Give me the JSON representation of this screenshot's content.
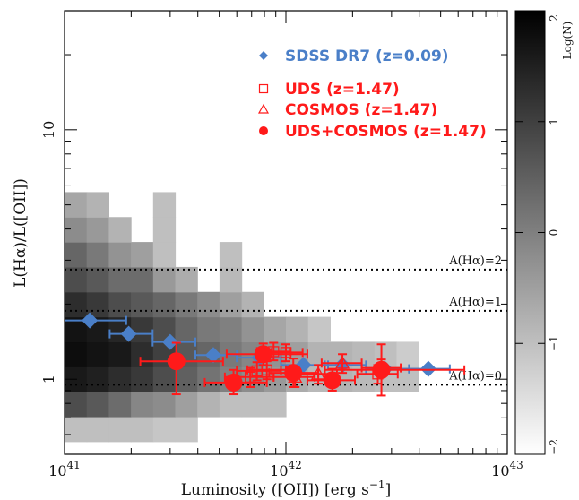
{
  "chart_data": {
    "type": "scatter",
    "xlabel": "Luminosity ([OII]) [erg s",
    "xlabel_sup": "−1",
    "xlabel_end": "]",
    "ylabel": "L(Hα)/L([OII])",
    "x_scale": "log",
    "y_scale": "log",
    "xlim": [
      1e+41,
      1e+43
    ],
    "ylim": [
      0.5,
      30
    ],
    "x_ticks": [
      {
        "value": 1e+41,
        "base": "10",
        "exp": "41"
      },
      {
        "value": 1e+42,
        "base": "10",
        "exp": "42"
      },
      {
        "value": 1e+43,
        "base": "10",
        "exp": "43"
      }
    ],
    "y_ticks": [
      {
        "value": 1,
        "label": "1"
      },
      {
        "value": 10,
        "label": "10"
      }
    ],
    "colorbar": {
      "label": "Log(N)",
      "range": [
        -2,
        2
      ],
      "ticks": [
        "−2",
        "−1",
        "0",
        "1",
        "2"
      ]
    },
    "reference_lines": [
      {
        "label": "A(Hα)=2",
        "y": 2.75
      },
      {
        "label": "A(Hα)=1",
        "y": 1.88
      },
      {
        "label": "A(Hα)=0",
        "y": 0.95
      }
    ],
    "legend": [
      {
        "label": "SDSS DR7 (z=0.09)",
        "color": "#4a7fc8",
        "marker": "diamond"
      },
      {
        "label": "UDS (z=1.47)",
        "color": "#ff1a1a",
        "marker": "open-square"
      },
      {
        "label": "COSMOS (z=1.47)",
        "color": "#ff1a1a",
        "marker": "open-triangle"
      },
      {
        "label": "UDS+COSMOS (z=1.47)",
        "color": "#ff1a1a",
        "marker": "filled-circle"
      }
    ],
    "density_grid": {
      "x_edges_log": [
        41.0,
        41.1,
        41.2,
        41.3,
        41.4,
        41.5,
        41.6,
        41.7,
        41.8,
        41.9,
        42.0,
        42.1,
        42.2,
        42.3,
        42.4,
        42.5,
        42.6,
        42.7
      ],
      "y_edges_log": [
        -0.25,
        -0.15,
        -0.05,
        0.05,
        0.15,
        0.25,
        0.35,
        0.45,
        0.55,
        0.65,
        0.75
      ],
      "log_n": [
        [
          -1.0,
          -1.0,
          -1.0,
          -1.0,
          -1.1,
          -1.1,
          null,
          null,
          null,
          null,
          null,
          null,
          null,
          null,
          null,
          null,
          null
        ],
        [
          0.8,
          0.6,
          0.3,
          -0.1,
          -0.2,
          -0.5,
          -0.8,
          -1.0,
          -1.0,
          -1.0,
          null,
          null,
          null,
          null,
          null,
          null,
          null
        ],
        [
          1.6,
          1.5,
          1.3,
          1.1,
          0.8,
          0.5,
          0.2,
          0.0,
          -0.2,
          -0.4,
          -0.7,
          -0.9,
          -0.8,
          -0.9,
          -1.0,
          -1.0,
          null
        ],
        [
          1.8,
          1.7,
          1.6,
          1.3,
          1.0,
          0.6,
          0.4,
          0.1,
          -0.1,
          -0.3,
          -0.5,
          -0.8,
          -0.8,
          -0.9,
          -1.0,
          -1.2,
          null
        ],
        [
          1.7,
          1.6,
          1.4,
          1.1,
          0.8,
          0.4,
          0.1,
          0.0,
          -0.3,
          -0.6,
          -0.8,
          -1.1,
          null,
          null,
          null,
          null,
          null
        ],
        [
          1.3,
          1.1,
          0.8,
          0.6,
          0.4,
          0.1,
          -0.2,
          -0.5,
          -0.8,
          null,
          null,
          null,
          null,
          null,
          null,
          null,
          null
        ],
        [
          0.8,
          0.6,
          0.3,
          0.3,
          -0.4,
          -0.7,
          null,
          -0.9,
          null,
          null,
          null,
          null,
          null,
          null,
          null,
          null,
          null
        ],
        [
          0.4,
          0.1,
          -0.3,
          -0.5,
          -1.0,
          null,
          null,
          -1.0,
          null,
          null,
          null,
          null,
          null,
          null,
          null,
          null,
          null
        ],
        [
          -0.2,
          -0.4,
          -0.8,
          null,
          -1.0,
          null,
          null,
          null,
          null,
          null,
          null,
          null,
          null,
          null,
          null,
          null,
          null
        ],
        [
          -0.6,
          -0.8,
          null,
          null,
          -1.0,
          null,
          null,
          null,
          null,
          null,
          null,
          null,
          null,
          null,
          null,
          null,
          null
        ]
      ]
    },
    "series": [
      {
        "name": "SDSS DR7 (z=0.09)",
        "marker": "diamond",
        "color": "#4a7fc8",
        "points": [
          {
            "x": 1.3e+41,
            "y": 1.72,
            "x_err": [
              9e+40,
              1.9e+41
            ]
          },
          {
            "x": 1.95e+41,
            "y": 1.52,
            "x_err": [
              1.6e+41,
              2.5e+41
            ]
          },
          {
            "x": 3e+41,
            "y": 1.41,
            "x_err": [
              2.5e+41,
              3.9e+41
            ]
          },
          {
            "x": 4.7e+41,
            "y": 1.25,
            "x_err": [
              3.9e+41,
              6e+41
            ]
          },
          {
            "x": 7.6e+41,
            "y": 1.22,
            "x_err": [
              6e+41,
              9.5e+41
            ]
          },
          {
            "x": 1.2e+42,
            "y": 1.14,
            "x_err": [
              9.5e+41,
              1.55e+42
            ]
          },
          {
            "x": 1.8e+42,
            "y": 1.14,
            "x_err": [
              1.5e+42,
              2.3e+42
            ]
          },
          {
            "x": 2.8e+42,
            "y": 1.1,
            "x_err": [
              2.3e+42,
              3.6e+42
            ]
          },
          {
            "x": 4.4e+42,
            "y": 1.1,
            "x_err": [
              3.6e+42,
              5.5e+42
            ]
          }
        ]
      },
      {
        "name": "UDS (z=1.47)",
        "marker": "open-square",
        "color": "#ff1a1a",
        "points": [
          {
            "x": 6.9e+41,
            "y": 1.02,
            "x_err": [
              5.3e+41,
              8.8e+41
            ],
            "y_err": [
              0.93,
              1.11
            ]
          },
          {
            "x": 7.4e+41,
            "y": 1.08,
            "x_err": [
              6e+41,
              9.5e+41
            ],
            "y_err": [
              0.99,
              1.17
            ]
          },
          {
            "x": 8.8e+41,
            "y": 1.29,
            "x_err": [
              7.4e+41,
              1.05e+42
            ],
            "y_err": [
              1.19,
              1.4
            ]
          },
          {
            "x": 1e+42,
            "y": 1.28,
            "x_err": [
              8.6e+41,
              1.19e+42
            ],
            "y_err": [
              1.18,
              1.38
            ]
          },
          {
            "x": 8.2e+41,
            "y": 1.09,
            "x_err": [
              6.7e+41,
              1e+42
            ],
            "y_err": [
              1.0,
              1.18
            ]
          },
          {
            "x": 2.6e+42,
            "y": 1.05,
            "x_err": [
              2.1e+42,
              3.2e+42
            ],
            "y_err": [
              0.96,
              1.14
            ]
          }
        ]
      },
      {
        "name": "COSMOS (z=1.47)",
        "marker": "open-triangle",
        "color": "#ff1a1a",
        "points": [
          {
            "x": 1.1e+42,
            "y": 1.02,
            "x_err": [
              8.8e+41,
              1.35e+42
            ],
            "y_err": [
              0.93,
              1.11
            ]
          },
          {
            "x": 1.4e+42,
            "y": 1.05,
            "x_err": [
              1.15e+42,
              1.7e+42
            ],
            "y_err": [
              0.96,
              1.14
            ]
          },
          {
            "x": 1.8e+42,
            "y": 1.16,
            "x_err": [
              1.45e+42,
              2.2e+42
            ],
            "y_err": [
              1.06,
              1.26
            ]
          },
          {
            "x": 2.7e+42,
            "y": 1.11,
            "x_err": [
              2.2e+42,
              3.3e+42
            ],
            "y_err": [
              1.02,
              1.2
            ]
          }
        ]
      },
      {
        "name": "UDS+COSMOS (z=1.47)",
        "marker": "filled-circle",
        "color": "#ff1a1a",
        "points": [
          {
            "x": 3.2e+41,
            "y": 1.18,
            "x_err": [
              2.2e+41,
              5.2e+41
            ],
            "y_err": [
              0.87,
              1.4
            ]
          },
          {
            "x": 5.8e+41,
            "y": 0.97,
            "x_err": [
              4.3e+41,
              8.2e+41
            ],
            "y_err": [
              0.87,
              1.09
            ]
          },
          {
            "x": 7.9e+41,
            "y": 1.26,
            "x_err": [
              5.4e+41,
              1.25e+42
            ],
            "y_err": [
              1.14,
              1.39
            ]
          },
          {
            "x": 1.08e+42,
            "y": 1.06,
            "x_err": [
              8.4e+41,
              1.4e+42
            ],
            "y_err": [
              0.93,
              1.21
            ]
          },
          {
            "x": 1.62e+42,
            "y": 0.99,
            "x_err": [
              1.25e+42,
              2.05e+42
            ],
            "y_err": [
              0.9,
              1.1
            ]
          },
          {
            "x": 2.7e+42,
            "y": 1.09,
            "x_err": [
              1.5e+42,
              6.4e+42
            ],
            "y_err": [
              0.86,
              1.38
            ]
          }
        ]
      }
    ]
  }
}
